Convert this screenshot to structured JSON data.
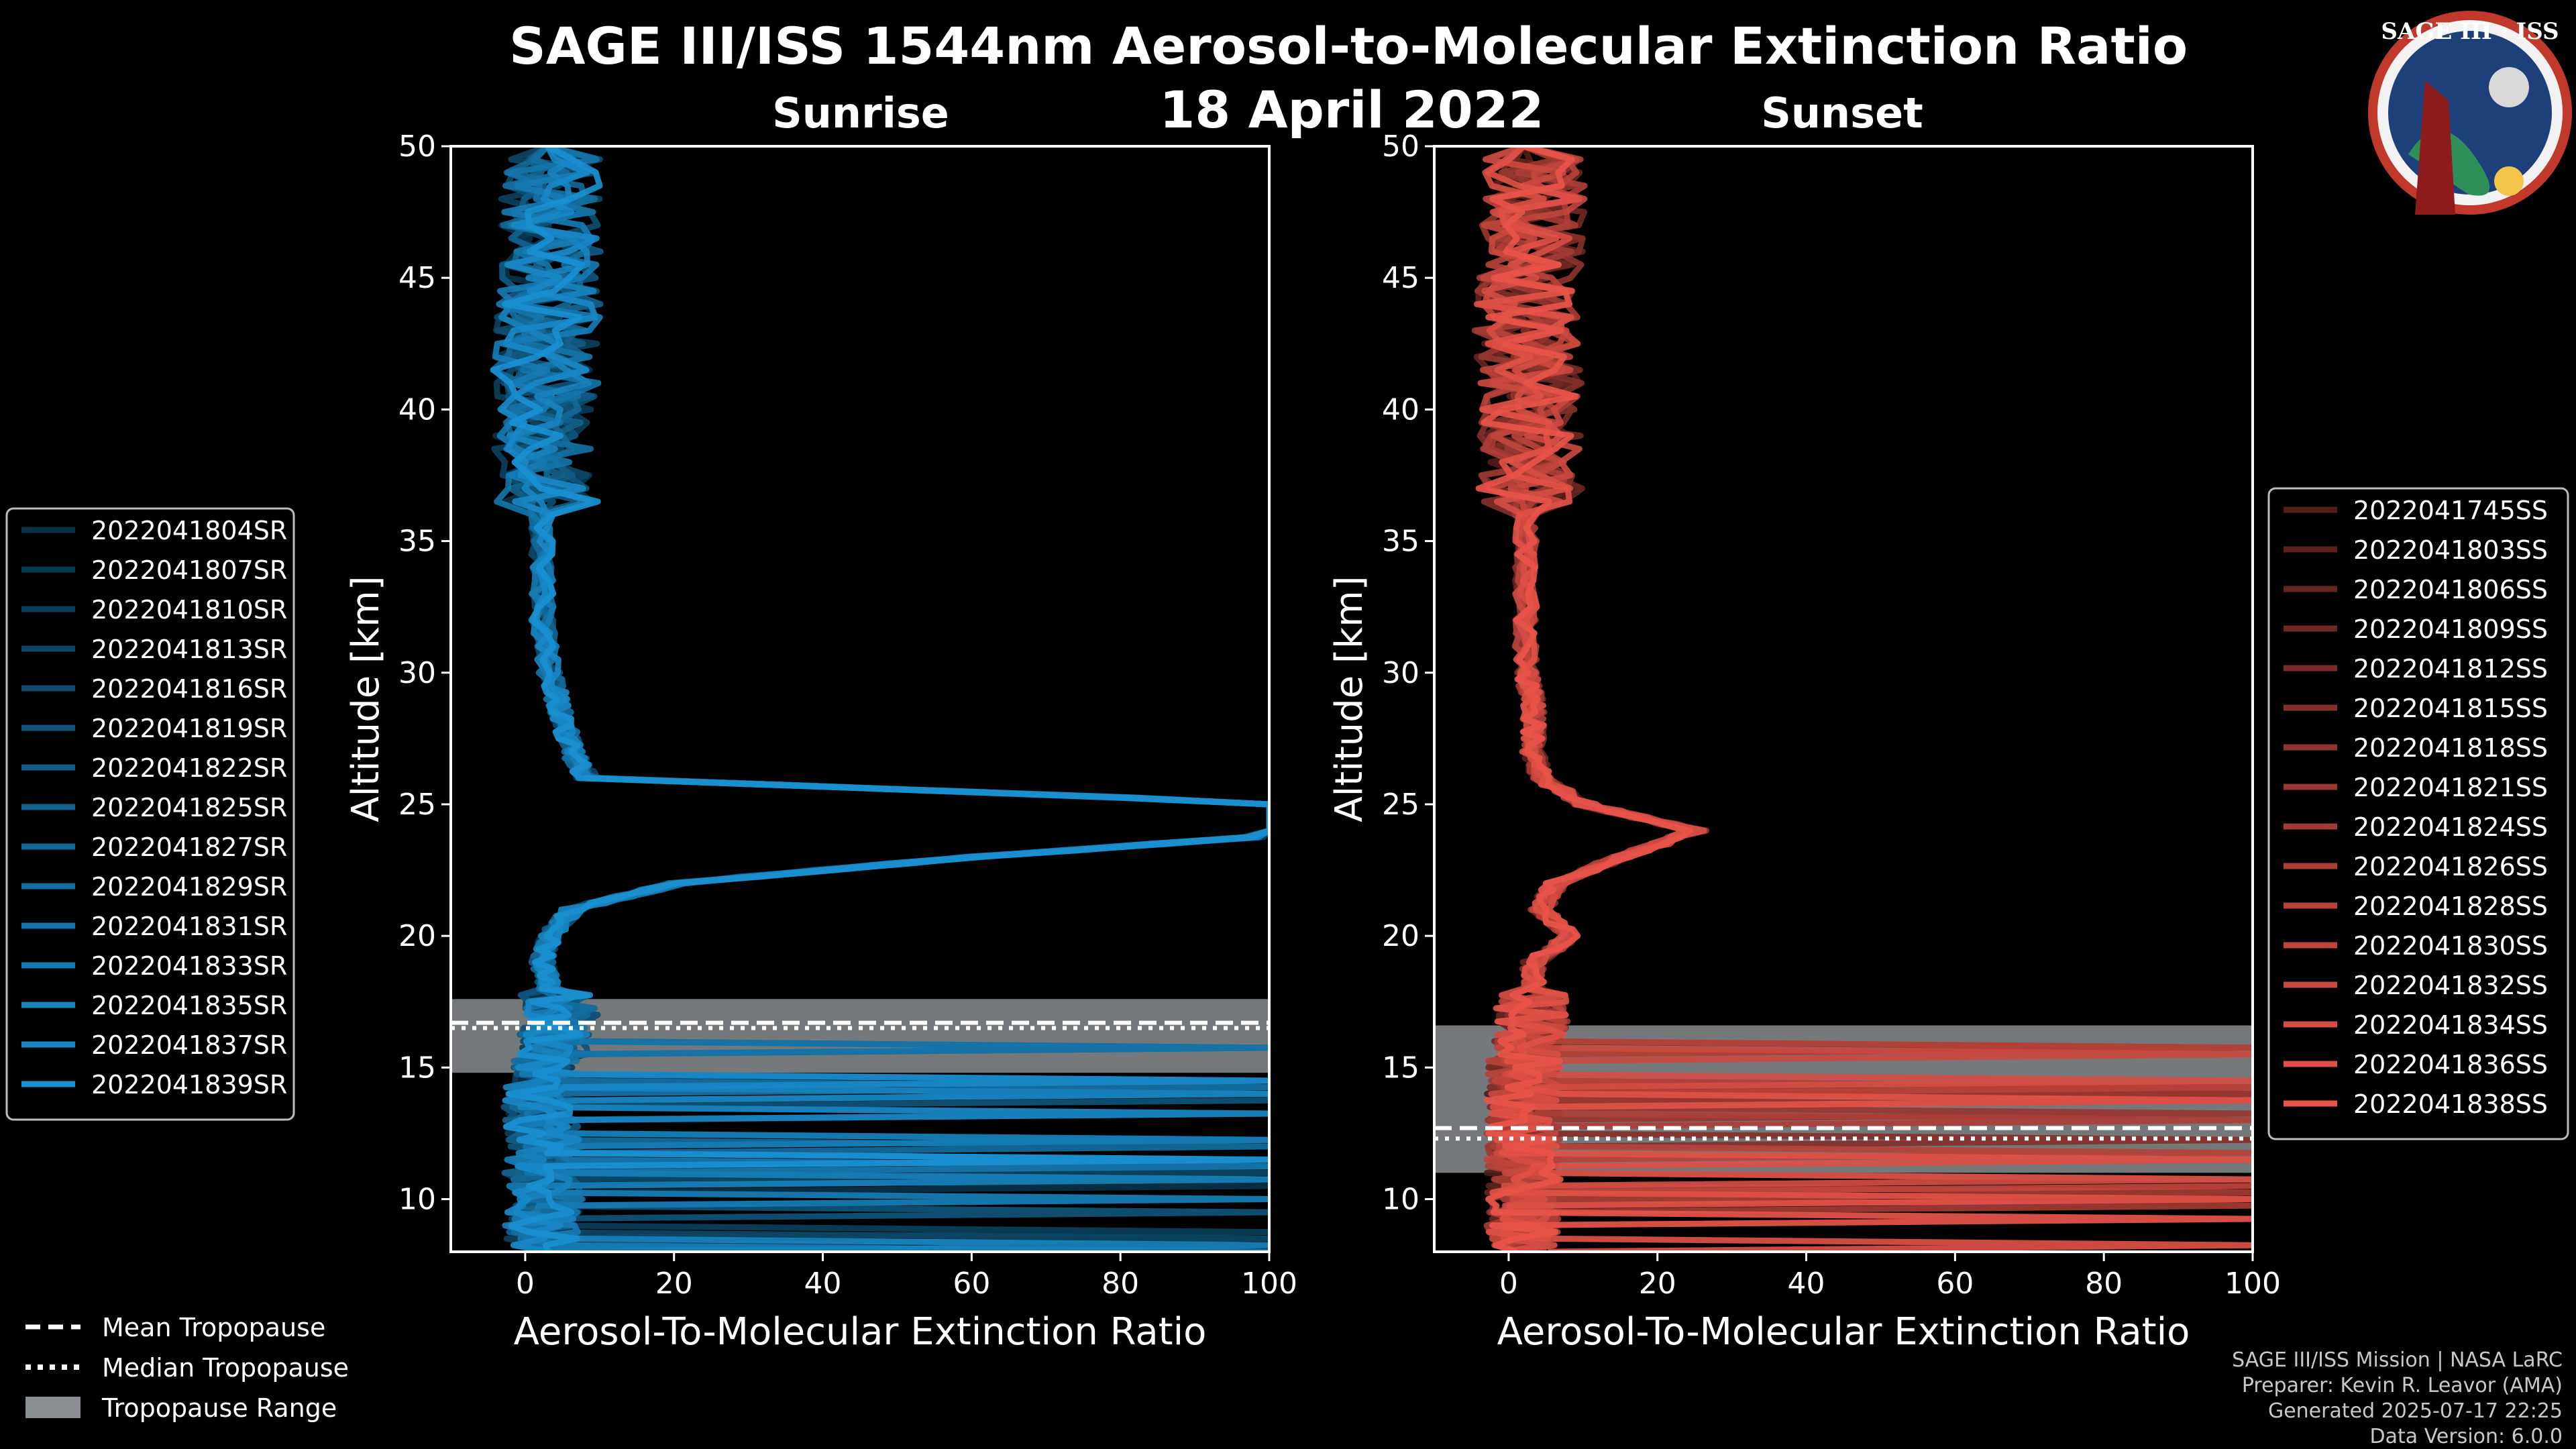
{
  "header": {
    "title": "SAGE III/ISS 1544nm Aerosol-to-Molecular Extinction Ratio",
    "date": "18 April 2022"
  },
  "logo": {
    "text": "SAGE III · ISS"
  },
  "legend_tropopause": {
    "mean": "Mean Tropopause",
    "median": "Median Tropopause",
    "range": "Tropopause Range"
  },
  "credits": {
    "line1": "SAGE III/ISS Mission | NASA LaRC",
    "line2": "Preparer: Kevin R. Leavor (AMA)",
    "line3": "Generated 2025-07-17 22:25",
    "line4": "Data Version: 6.0.0"
  },
  "colors": {
    "sunrise_series": "#1a8fd0",
    "sunset_series": "#e8544a",
    "tropopause_range": "#8a8d91",
    "background": "#000000",
    "axes": "#ffffff"
  },
  "chart_data": [
    {
      "type": "line",
      "title": "Sunrise",
      "xlabel": "Aerosol-To-Molecular Extinction Ratio",
      "ylabel": "Altitude [km]",
      "xlim": [
        -10,
        100
      ],
      "ylim": [
        8,
        50
      ],
      "xticks": [
        0,
        20,
        40,
        60,
        80,
        100
      ],
      "yticks": [
        10,
        15,
        20,
        25,
        30,
        35,
        40,
        45,
        50
      ],
      "legend_position": "outside-left",
      "tropopause": {
        "mean": 16.7,
        "median": 16.5,
        "range": [
          14.8,
          17.6
        ]
      },
      "series": [
        {
          "name": "2022041804SR"
        },
        {
          "name": "2022041807SR"
        },
        {
          "name": "2022041810SR"
        },
        {
          "name": "2022041813SR"
        },
        {
          "name": "2022041816SR"
        },
        {
          "name": "2022041819SR"
        },
        {
          "name": "2022041822SR"
        },
        {
          "name": "2022041825SR"
        },
        {
          "name": "2022041827SR"
        },
        {
          "name": "2022041829SR"
        },
        {
          "name": "2022041831SR"
        },
        {
          "name": "2022041833SR"
        },
        {
          "name": "2022041835SR"
        },
        {
          "name": "2022041837SR"
        },
        {
          "name": "2022041839SR"
        }
      ],
      "profile_shape": {
        "alt": [
          8,
          9,
          10,
          11,
          12,
          13,
          14,
          15,
          16,
          17,
          18,
          19,
          20,
          21,
          22,
          23,
          24,
          25,
          26,
          27,
          28,
          29,
          30,
          32,
          34,
          36,
          38,
          40,
          42,
          44,
          46,
          48,
          50
        ],
        "ratio": [
          2,
          1,
          2,
          1,
          2,
          1,
          1,
          2,
          3,
          4,
          3,
          2,
          3,
          6,
          20,
          60,
          110,
          105,
          8,
          6,
          5,
          4,
          3,
          2,
          2,
          2,
          1,
          2,
          1,
          2,
          2,
          2,
          3
        ]
      }
    },
    {
      "type": "line",
      "title": "Sunset",
      "xlabel": "Aerosol-To-Molecular Extinction Ratio",
      "ylabel": "Altitude [km]",
      "xlim": [
        -10,
        100
      ],
      "ylim": [
        8,
        50
      ],
      "xticks": [
        0,
        20,
        40,
        60,
        80,
        100
      ],
      "yticks": [
        10,
        15,
        20,
        25,
        30,
        35,
        40,
        45,
        50
      ],
      "legend_position": "outside-right",
      "tropopause": {
        "mean": 12.7,
        "median": 12.3,
        "range": [
          11.0,
          16.6
        ]
      },
      "series": [
        {
          "name": "2022041745SS"
        },
        {
          "name": "2022041803SS"
        },
        {
          "name": "2022041806SS"
        },
        {
          "name": "2022041809SS"
        },
        {
          "name": "2022041812SS"
        },
        {
          "name": "2022041815SS"
        },
        {
          "name": "2022041818SS"
        },
        {
          "name": "2022041821SS"
        },
        {
          "name": "2022041824SS"
        },
        {
          "name": "2022041826SS"
        },
        {
          "name": "2022041828SS"
        },
        {
          "name": "2022041830SS"
        },
        {
          "name": "2022041832SS"
        },
        {
          "name": "2022041834SS"
        },
        {
          "name": "2022041836SS"
        },
        {
          "name": "2022041838SS"
        }
      ],
      "profile_shape": {
        "alt": [
          8,
          9,
          10,
          11,
          12,
          13,
          14,
          15,
          16,
          17,
          18,
          19,
          20,
          21,
          22,
          23,
          24,
          25,
          26,
          27,
          28,
          29,
          30,
          32,
          34,
          36,
          38,
          40,
          42,
          44,
          46,
          48,
          50
        ],
        "ratio": [
          1,
          1,
          1,
          1,
          1,
          1,
          1,
          1,
          2,
          2,
          3,
          3,
          8,
          4,
          6,
          15,
          25,
          10,
          4,
          3,
          3,
          3,
          2,
          2,
          2,
          2,
          1,
          2,
          1,
          1,
          2,
          2,
          2
        ]
      }
    }
  ]
}
